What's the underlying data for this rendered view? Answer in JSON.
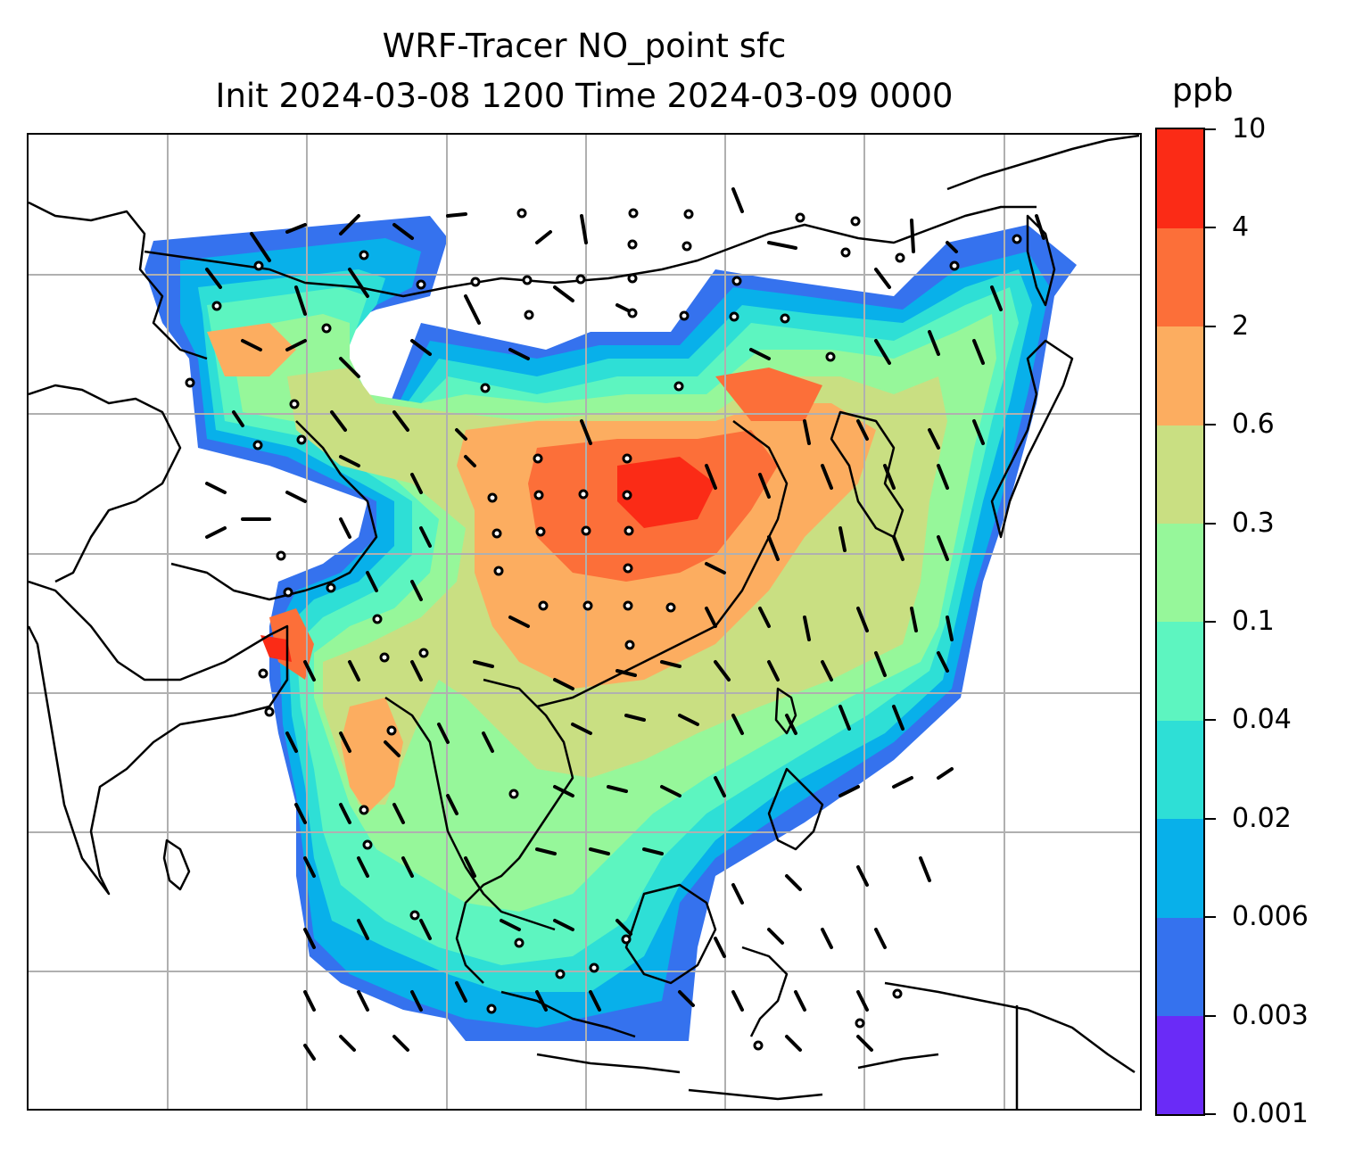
{
  "title": {
    "line1": "WRF-Tracer NO_point sfc",
    "line2": "Init 2024-03-08 1200 Time 2024-03-09 0000"
  },
  "colorbar": {
    "unit": "ppb",
    "ticks": [
      "0.001",
      "0.003",
      "0.006",
      "0.02",
      "0.04",
      "0.1",
      "0.3",
      "0.6",
      "2",
      "4",
      "10"
    ],
    "colors": [
      "#6a2bf7",
      "#3572ee",
      "#08b0ea",
      "#2edfd6",
      "#5df5c0",
      "#96f79a",
      "#c9df82",
      "#fcad60",
      "#fc6f39",
      "#fb2b16"
    ]
  },
  "map": {
    "gridline_color": "#b0b0b0",
    "coastline_color": "#000000",
    "wind_barb_color": "#000000",
    "calm_wind_marker": "circle"
  }
}
